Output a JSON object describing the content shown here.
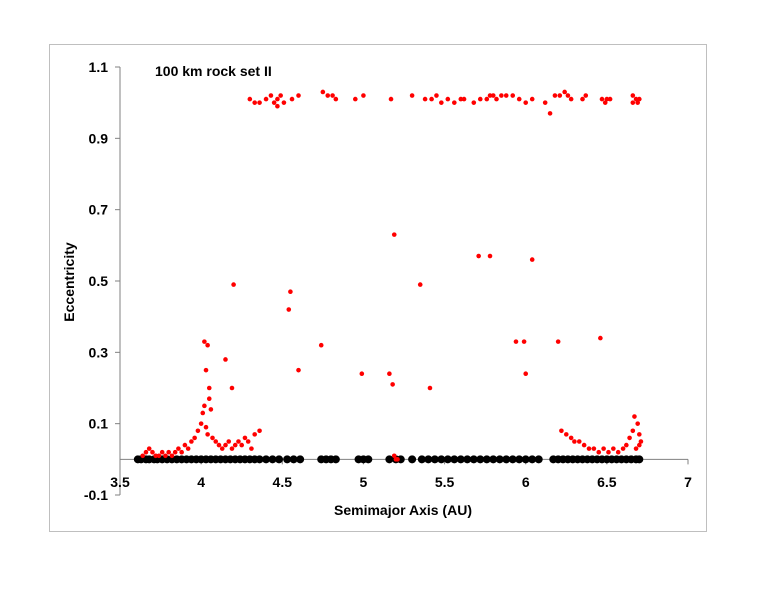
{
  "chart_data": {
    "type": "scatter",
    "annotation": "100 km rock set II",
    "xlabel": "Semimajor Axis (AU)",
    "ylabel": "Eccentricity",
    "xlim": [
      3.5,
      7
    ],
    "ylim": [
      -0.1,
      1.1
    ],
    "x_ticks": [
      "3.5",
      "4",
      "4.5",
      "5",
      "5.5",
      "6",
      "6.5",
      "7"
    ],
    "y_ticks": [
      "-0.1",
      "0.1",
      "0.3",
      "0.5",
      "0.7",
      "0.9",
      "1.1"
    ],
    "grid": false,
    "legend": "none",
    "colors": {
      "red": "#ff0000",
      "black": "#000000",
      "axis": "#808080",
      "frame": "#bfbfbf"
    },
    "series": [
      {
        "color": "black",
        "points": [
          [
            3.61,
            0.0
          ],
          [
            3.63,
            0.0
          ],
          [
            3.66,
            0.0
          ],
          [
            3.68,
            0.0
          ],
          [
            3.71,
            0.0
          ],
          [
            3.73,
            0.0
          ],
          [
            3.76,
            0.0
          ],
          [
            3.79,
            0.0
          ],
          [
            3.82,
            0.0
          ],
          [
            3.85,
            0.0
          ],
          [
            3.88,
            0.0
          ],
          [
            3.91,
            0.0
          ],
          [
            3.94,
            0.0
          ],
          [
            3.97,
            0.0
          ],
          [
            4.0,
            0.0
          ],
          [
            4.03,
            0.0
          ],
          [
            4.06,
            0.0
          ],
          [
            4.09,
            0.0
          ],
          [
            4.12,
            0.0
          ],
          [
            4.15,
            0.0
          ],
          [
            4.18,
            0.0
          ],
          [
            4.21,
            0.0
          ],
          [
            4.24,
            0.0
          ],
          [
            4.27,
            0.0
          ],
          [
            4.3,
            0.0
          ],
          [
            4.33,
            0.0
          ],
          [
            4.36,
            0.0
          ],
          [
            4.4,
            0.0
          ],
          [
            4.44,
            0.0
          ],
          [
            4.48,
            0.0
          ],
          [
            4.53,
            0.0
          ],
          [
            4.57,
            0.0
          ],
          [
            4.61,
            0.0
          ],
          [
            4.74,
            0.0
          ],
          [
            4.77,
            0.0
          ],
          [
            4.8,
            0.0
          ],
          [
            4.83,
            0.0
          ],
          [
            4.97,
            0.0
          ],
          [
            5.0,
            0.0
          ],
          [
            5.03,
            0.0
          ],
          [
            5.16,
            0.0
          ],
          [
            5.2,
            0.0
          ],
          [
            5.23,
            0.0
          ],
          [
            5.3,
            0.0
          ],
          [
            5.36,
            0.0
          ],
          [
            5.4,
            0.0
          ],
          [
            5.44,
            0.0
          ],
          [
            5.48,
            0.0
          ],
          [
            5.52,
            0.0
          ],
          [
            5.56,
            0.0
          ],
          [
            5.6,
            0.0
          ],
          [
            5.64,
            0.0
          ],
          [
            5.68,
            0.0
          ],
          [
            5.72,
            0.0
          ],
          [
            5.76,
            0.0
          ],
          [
            5.8,
            0.0
          ],
          [
            5.84,
            0.0
          ],
          [
            5.88,
            0.0
          ],
          [
            5.92,
            0.0
          ],
          [
            5.96,
            0.0
          ],
          [
            6.0,
            0.0
          ],
          [
            6.04,
            0.0
          ],
          [
            6.08,
            0.0
          ],
          [
            6.17,
            0.0
          ],
          [
            6.2,
            0.0
          ],
          [
            6.23,
            0.0
          ],
          [
            6.26,
            0.0
          ],
          [
            6.29,
            0.0
          ],
          [
            6.32,
            0.0
          ],
          [
            6.35,
            0.0
          ],
          [
            6.38,
            0.0
          ],
          [
            6.41,
            0.0
          ],
          [
            6.44,
            0.0
          ],
          [
            6.47,
            0.0
          ],
          [
            6.5,
            0.0
          ],
          [
            6.53,
            0.0
          ],
          [
            6.56,
            0.0
          ],
          [
            6.59,
            0.0
          ],
          [
            6.62,
            0.0
          ],
          [
            6.65,
            0.0
          ],
          [
            6.68,
            0.0
          ],
          [
            6.7,
            0.0
          ]
        ]
      },
      {
        "color": "red",
        "points": [
          [
            4.3,
            1.01
          ],
          [
            4.33,
            1.0
          ],
          [
            4.36,
            1.0
          ],
          [
            4.4,
            1.01
          ],
          [
            4.43,
            1.02
          ],
          [
            4.45,
            1.0
          ],
          [
            4.47,
            1.01
          ],
          [
            4.49,
            1.02
          ],
          [
            4.51,
            1.0
          ],
          [
            4.47,
            0.99
          ],
          [
            4.56,
            1.01
          ],
          [
            4.6,
            1.02
          ],
          [
            4.75,
            1.03
          ],
          [
            4.78,
            1.02
          ],
          [
            4.81,
            1.02
          ],
          [
            4.83,
            1.01
          ],
          [
            4.95,
            1.01
          ],
          [
            5.0,
            1.02
          ],
          [
            5.17,
            1.01
          ],
          [
            5.3,
            1.02
          ],
          [
            5.38,
            1.01
          ],
          [
            5.42,
            1.01
          ],
          [
            5.45,
            1.02
          ],
          [
            5.48,
            1.0
          ],
          [
            5.52,
            1.01
          ],
          [
            5.56,
            1.0
          ],
          [
            5.6,
            1.01
          ],
          [
            5.62,
            1.01
          ],
          [
            5.68,
            1.0
          ],
          [
            5.72,
            1.01
          ],
          [
            5.76,
            1.01
          ],
          [
            5.78,
            1.02
          ],
          [
            5.8,
            1.02
          ],
          [
            5.82,
            1.01
          ],
          [
            5.85,
            1.02
          ],
          [
            5.88,
            1.02
          ],
          [
            5.92,
            1.02
          ],
          [
            5.96,
            1.01
          ],
          [
            6.0,
            1.0
          ],
          [
            6.04,
            1.01
          ],
          [
            6.12,
            1.0
          ],
          [
            6.15,
            0.97
          ],
          [
            6.18,
            1.02
          ],
          [
            6.21,
            1.02
          ],
          [
            6.24,
            1.03
          ],
          [
            6.26,
            1.02
          ],
          [
            6.28,
            1.01
          ],
          [
            6.35,
            1.01
          ],
          [
            6.37,
            1.02
          ],
          [
            6.47,
            1.01
          ],
          [
            6.49,
            1.0
          ],
          [
            6.5,
            1.01
          ],
          [
            6.52,
            1.01
          ],
          [
            6.66,
            1.02
          ],
          [
            6.68,
            1.01
          ],
          [
            6.7,
            1.01
          ],
          [
            6.66,
            1.0
          ],
          [
            6.69,
            1.0
          ],
          [
            5.19,
            0.63
          ],
          [
            5.71,
            0.57
          ],
          [
            5.78,
            0.57
          ],
          [
            6.04,
            0.56
          ],
          [
            4.2,
            0.49
          ],
          [
            5.35,
            0.49
          ],
          [
            4.55,
            0.47
          ],
          [
            4.54,
            0.42
          ],
          [
            6.46,
            0.34
          ],
          [
            4.02,
            0.33
          ],
          [
            4.04,
            0.32
          ],
          [
            5.94,
            0.33
          ],
          [
            5.99,
            0.33
          ],
          [
            6.2,
            0.33
          ],
          [
            4.74,
            0.32
          ],
          [
            4.15,
            0.28
          ],
          [
            4.03,
            0.25
          ],
          [
            4.6,
            0.25
          ],
          [
            4.99,
            0.24
          ],
          [
            5.16,
            0.24
          ],
          [
            6.0,
            0.24
          ],
          [
            5.18,
            0.21
          ],
          [
            5.41,
            0.2
          ],
          [
            4.05,
            0.2
          ],
          [
            4.19,
            0.2
          ],
          [
            3.64,
            0.01
          ],
          [
            3.66,
            0.02
          ],
          [
            3.68,
            0.03
          ],
          [
            3.7,
            0.02
          ],
          [
            3.72,
            0.01
          ],
          [
            3.74,
            0.01
          ],
          [
            3.76,
            0.02
          ],
          [
            3.78,
            0.01
          ],
          [
            3.8,
            0.02
          ],
          [
            3.82,
            0.01
          ],
          [
            3.84,
            0.02
          ],
          [
            3.86,
            0.03
          ],
          [
            3.88,
            0.02
          ],
          [
            3.9,
            0.04
          ],
          [
            3.92,
            0.03
          ],
          [
            3.94,
            0.05
          ],
          [
            3.96,
            0.06
          ],
          [
            3.98,
            0.08
          ],
          [
            4.0,
            0.1
          ],
          [
            4.01,
            0.13
          ],
          [
            4.02,
            0.15
          ],
          [
            4.03,
            0.09
          ],
          [
            4.04,
            0.07
          ],
          [
            4.05,
            0.17
          ],
          [
            4.06,
            0.14
          ],
          [
            4.07,
            0.06
          ],
          [
            4.09,
            0.05
          ],
          [
            4.11,
            0.04
          ],
          [
            4.13,
            0.03
          ],
          [
            4.15,
            0.04
          ],
          [
            4.17,
            0.05
          ],
          [
            4.19,
            0.03
          ],
          [
            4.21,
            0.04
          ],
          [
            4.23,
            0.05
          ],
          [
            4.25,
            0.04
          ],
          [
            4.27,
            0.06
          ],
          [
            4.29,
            0.05
          ],
          [
            4.31,
            0.03
          ],
          [
            4.33,
            0.07
          ],
          [
            4.36,
            0.08
          ],
          [
            6.22,
            0.08
          ],
          [
            6.25,
            0.07
          ],
          [
            6.28,
            0.06
          ],
          [
            6.3,
            0.05
          ],
          [
            6.33,
            0.05
          ],
          [
            6.36,
            0.04
          ],
          [
            6.39,
            0.03
          ],
          [
            6.42,
            0.03
          ],
          [
            6.45,
            0.02
          ],
          [
            6.48,
            0.03
          ],
          [
            6.51,
            0.02
          ],
          [
            6.54,
            0.03
          ],
          [
            6.57,
            0.02
          ],
          [
            6.6,
            0.03
          ],
          [
            6.62,
            0.04
          ],
          [
            6.64,
            0.06
          ],
          [
            6.66,
            0.08
          ],
          [
            6.67,
            0.12
          ],
          [
            6.69,
            0.1
          ],
          [
            6.7,
            0.07
          ],
          [
            6.71,
            0.05
          ],
          [
            6.7,
            0.04
          ],
          [
            6.68,
            0.03
          ],
          [
            5.19,
            0.01
          ],
          [
            5.2,
            0.0
          ],
          [
            5.21,
            0.0
          ]
        ]
      }
    ]
  }
}
